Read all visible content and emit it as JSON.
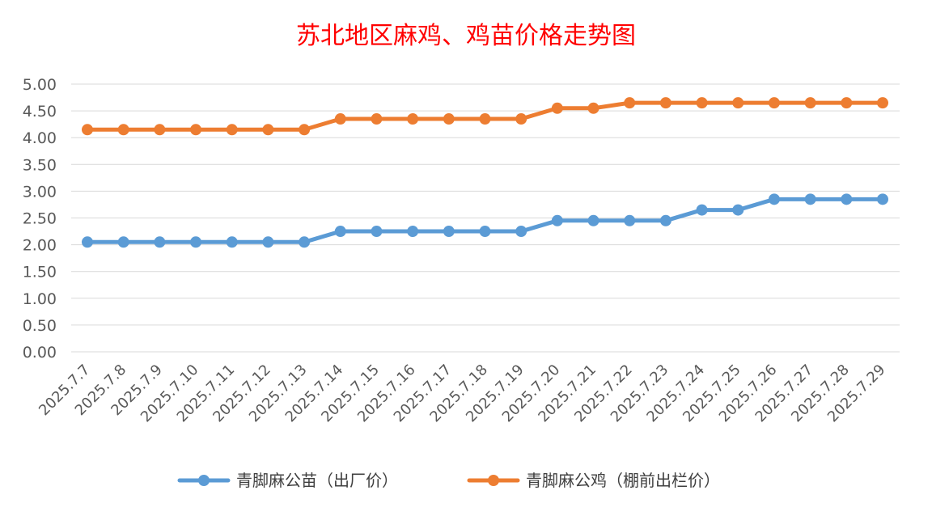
{
  "chart_data": {
    "type": "line",
    "title": "苏北地区麻鸡、鸡苗价格走势图",
    "xlabel": "",
    "ylabel": "",
    "categories": [
      "2025.7.7",
      "2025.7.8",
      "2025.7.9",
      "2025.7.10",
      "2025.7.11",
      "2025.7.12",
      "2025.7.13",
      "2025.7.14",
      "2025.7.15",
      "2025.7.16",
      "2025.7.17",
      "2025.7.18",
      "2025.7.19",
      "2025.7.20",
      "2025.7.21",
      "2025.7.22",
      "2025.7.23",
      "2025.7.24",
      "2025.7.25",
      "2025.7.26",
      "2025.7.27",
      "2025.7.28",
      "2025.7.29"
    ],
    "yticks": [
      "0.00",
      "0.50",
      "1.00",
      "1.50",
      "2.00",
      "2.50",
      "3.00",
      "3.50",
      "4.00",
      "4.50",
      "5.00"
    ],
    "ylim": [
      0,
      5
    ],
    "grid": true,
    "legend_position": "bottom",
    "series": [
      {
        "name": "青脚麻公苗（出厂价）",
        "color": "#5b9bd5",
        "values": [
          2.05,
          2.05,
          2.05,
          2.05,
          2.05,
          2.05,
          2.05,
          2.25,
          2.25,
          2.25,
          2.25,
          2.25,
          2.25,
          2.45,
          2.45,
          2.45,
          2.45,
          2.65,
          2.65,
          2.85,
          2.85,
          2.85,
          2.85
        ]
      },
      {
        "name": "青脚麻公鸡（棚前出栏价）",
        "color": "#ed7d31",
        "values": [
          4.15,
          4.15,
          4.15,
          4.15,
          4.15,
          4.15,
          4.15,
          4.35,
          4.35,
          4.35,
          4.35,
          4.35,
          4.35,
          4.55,
          4.55,
          4.65,
          4.65,
          4.65,
          4.65,
          4.65,
          4.65,
          4.65,
          4.65
        ]
      }
    ]
  }
}
